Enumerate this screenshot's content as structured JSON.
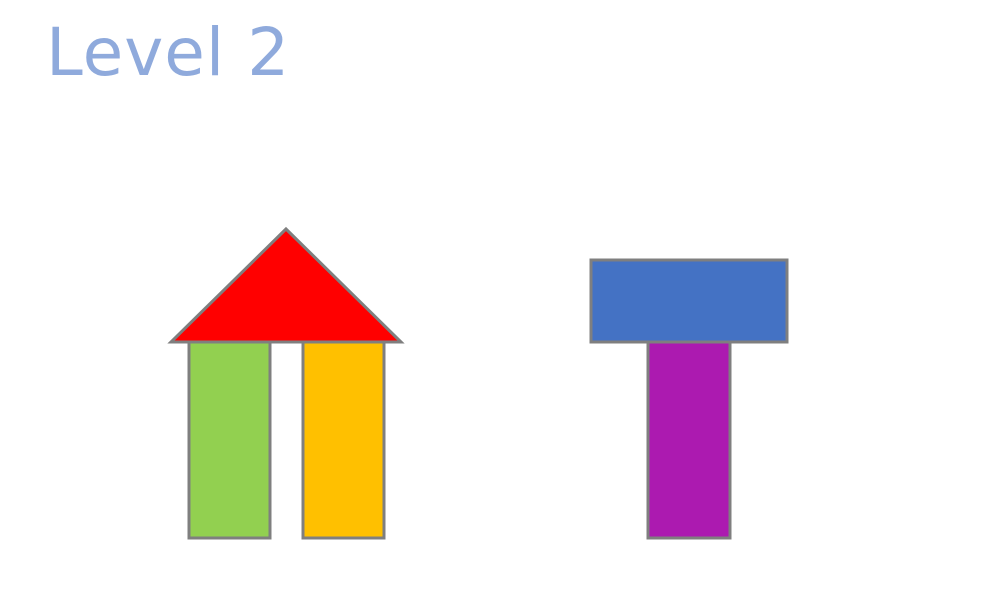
{
  "header": {
    "title": "Level 2"
  },
  "colors": {
    "title": "#8faadc",
    "outline": "#7f7f7f",
    "roof": "#ff0000",
    "left_pillar": "#92d050",
    "right_pillar": "#ffc000",
    "top_bar": "#4472c4",
    "stem": "#ac1ab0"
  },
  "structures": [
    {
      "name": "house",
      "pieces": [
        {
          "name": "roof-triangle",
          "shape": "triangle",
          "color": "red"
        },
        {
          "name": "left-pillar",
          "shape": "rectangle",
          "color": "green"
        },
        {
          "name": "right-pillar",
          "shape": "rectangle",
          "color": "yellow"
        }
      ]
    },
    {
      "name": "t-shape",
      "pieces": [
        {
          "name": "top-bar",
          "shape": "rectangle",
          "color": "blue"
        },
        {
          "name": "stem",
          "shape": "rectangle",
          "color": "purple"
        }
      ]
    }
  ]
}
